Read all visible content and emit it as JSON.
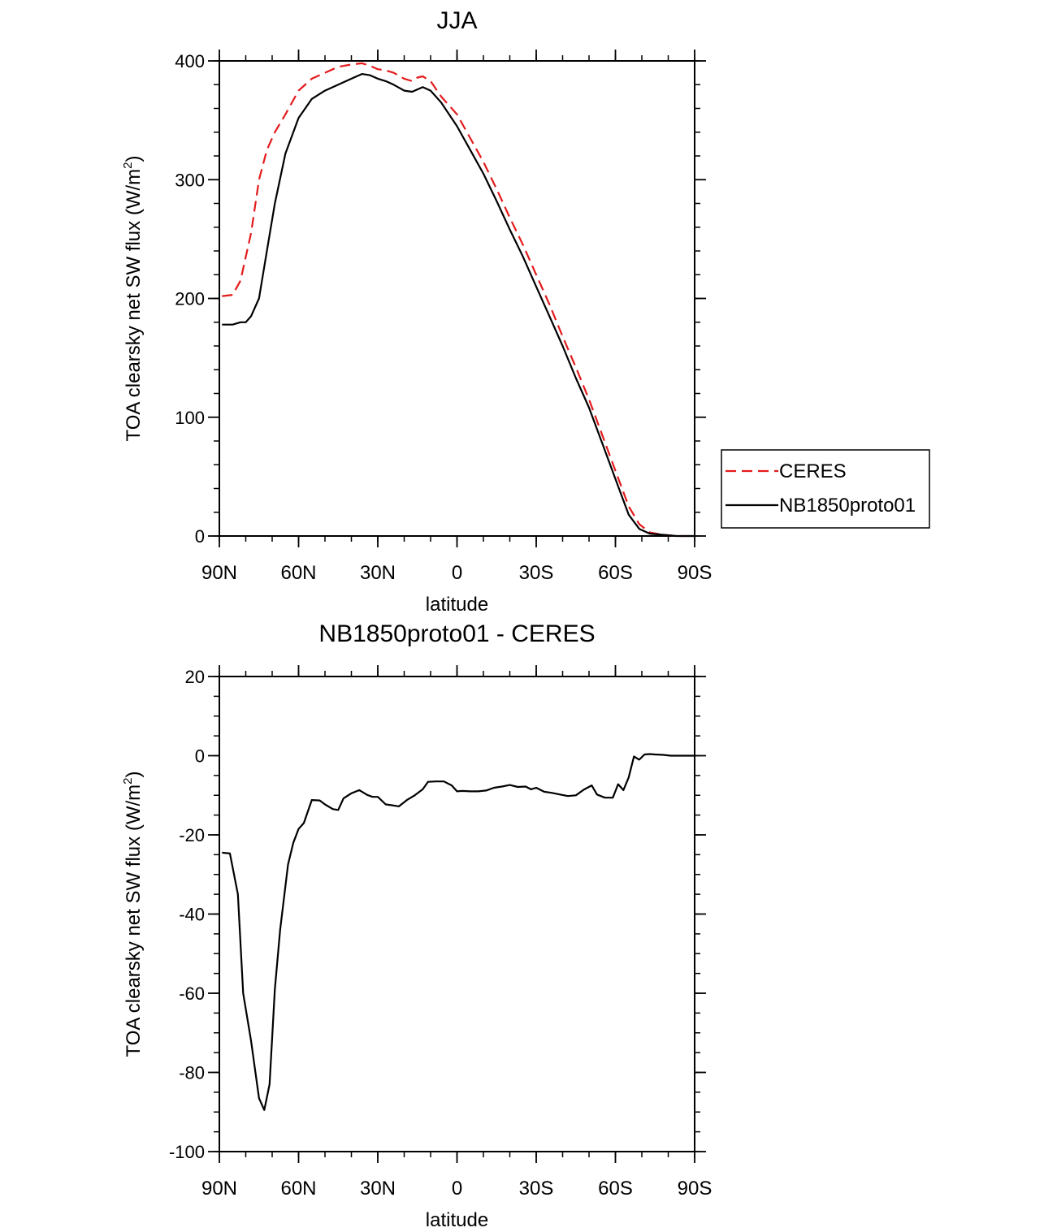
{
  "chart_data": [
    {
      "type": "line",
      "title": "JJA",
      "xlabel": "latitude",
      "ylabel": "TOA clearsky net SW flux (W/m",
      "ylabel_sup": "2",
      "ylabel_close": ")",
      "xlim": [
        90,
        -90
      ],
      "ylim": [
        0,
        400
      ],
      "x_ticks": [
        {
          "value": 90,
          "label": "90N"
        },
        {
          "value": 60,
          "label": "60N"
        },
        {
          "value": 30,
          "label": "30N"
        },
        {
          "value": 0,
          "label": "0"
        },
        {
          "value": -30,
          "label": "30S"
        },
        {
          "value": -60,
          "label": "60S"
        },
        {
          "value": -90,
          "label": "90S"
        }
      ],
      "y_ticks": [
        {
          "value": 0,
          "label": "0"
        },
        {
          "value": 100,
          "label": "100"
        },
        {
          "value": 200,
          "label": "200"
        },
        {
          "value": 300,
          "label": "300"
        },
        {
          "value": 400,
          "label": "400"
        }
      ],
      "legend": {
        "position": "right",
        "entries": [
          "CERES",
          "NB1850proto01"
        ]
      },
      "series": [
        {
          "name": "CERES",
          "color": "#e41a1c",
          "dash": true,
          "x": [
            89,
            85,
            82,
            80,
            78,
            75,
            72,
            69,
            65,
            60,
            55,
            50,
            45,
            40,
            36,
            33,
            30,
            27,
            24,
            20,
            17,
            15,
            13,
            10,
            6,
            0,
            -5,
            -10,
            -15,
            -20,
            -25,
            -30,
            -35,
            -40,
            -45,
            -50,
            -55,
            -60,
            -65,
            -69,
            -73,
            -78,
            -83,
            -90
          ],
          "values": [
            202,
            203,
            215,
            235,
            255,
            300,
            325,
            340,
            355,
            375,
            385,
            390,
            395,
            397,
            398,
            396,
            393,
            392,
            390,
            385,
            383,
            386,
            387,
            383,
            370,
            355,
            335,
            315,
            292,
            268,
            245,
            220,
            195,
            168,
            142,
            115,
            85,
            55,
            25,
            10,
            3,
            1,
            0,
            0
          ]
        },
        {
          "name": "NB1850proto01",
          "color": "#000000",
          "dash": false,
          "x": [
            89,
            85,
            82,
            80,
            78,
            75,
            72,
            69,
            65,
            60,
            55,
            50,
            45,
            40,
            36,
            33,
            30,
            27,
            24,
            20,
            17,
            15,
            13,
            10,
            6,
            0,
            -5,
            -10,
            -15,
            -20,
            -25,
            -30,
            -35,
            -40,
            -45,
            -50,
            -55,
            -60,
            -65,
            -69,
            -73,
            -78,
            -83,
            -90
          ],
          "values": [
            178,
            178,
            180,
            180,
            185,
            200,
            240,
            280,
            322,
            352,
            368,
            375,
            380,
            385,
            389,
            388,
            385,
            383,
            380,
            375,
            374,
            376,
            378,
            375,
            365,
            345,
            325,
            305,
            282,
            258,
            235,
            210,
            185,
            160,
            133,
            108,
            78,
            48,
            18,
            6,
            2,
            1,
            0,
            0
          ]
        }
      ]
    },
    {
      "type": "line",
      "title": "NB1850proto01 - CERES",
      "xlabel": "latitude",
      "ylabel": "TOA clearsky net SW flux (W/m",
      "ylabel_sup": "2",
      "ylabel_close": ")",
      "xlim": [
        90,
        -90
      ],
      "ylim": [
        -100,
        20
      ],
      "x_ticks": [
        {
          "value": 90,
          "label": "90N"
        },
        {
          "value": 60,
          "label": "60N"
        },
        {
          "value": 30,
          "label": "30N"
        },
        {
          "value": 0,
          "label": "0"
        },
        {
          "value": -30,
          "label": "30S"
        },
        {
          "value": -60,
          "label": "60S"
        },
        {
          "value": -90,
          "label": "90S"
        }
      ],
      "y_ticks": [
        {
          "value": -100,
          "label": "-100"
        },
        {
          "value": -80,
          "label": "-80"
        },
        {
          "value": -60,
          "label": "-60"
        },
        {
          "value": -40,
          "label": "-40"
        },
        {
          "value": -20,
          "label": "-20"
        },
        {
          "value": 0,
          "label": "0"
        },
        {
          "value": 20,
          "label": "20"
        }
      ],
      "series": [
        {
          "name": "NB1850proto01 - CERES",
          "color": "#000000",
          "dash": false,
          "x": [
            89,
            86,
            83,
            81,
            78,
            75,
            73,
            71,
            69,
            67,
            64,
            62,
            60,
            58,
            55,
            52,
            50,
            47,
            45,
            43,
            40,
            37,
            34,
            32,
            30,
            27,
            25,
            22,
            19,
            16,
            13,
            11,
            8,
            5,
            2,
            0,
            -2,
            -5,
            -8,
            -11,
            -14,
            -17,
            -20,
            -23,
            -26,
            -28,
            -30,
            -33,
            -36,
            -39,
            -42,
            -45,
            -48,
            -51,
            -53,
            -56,
            -59,
            -61,
            -63,
            -65,
            -67,
            -69,
            -71,
            -73,
            -75,
            -78,
            -81,
            -84,
            -87,
            -90
          ],
          "values": [
            -24.5,
            -24.7,
            -35,
            -60,
            -72,
            -86.5,
            -89.5,
            -83,
            -59,
            -44,
            -27.5,
            -22,
            -18.5,
            -17,
            -11.2,
            -11.3,
            -12.3,
            -13.5,
            -13.7,
            -10.8,
            -9.5,
            -8.7,
            -9.9,
            -10.4,
            -10.4,
            -12.3,
            -12.5,
            -12.8,
            -11.2,
            -10,
            -8.5,
            -6.6,
            -6.5,
            -6.5,
            -7.5,
            -9,
            -8.9,
            -9,
            -9,
            -8.8,
            -8.1,
            -7.8,
            -7.4,
            -7.9,
            -7.8,
            -8.5,
            -8.1,
            -9.1,
            -9.4,
            -9.8,
            -10.2,
            -10,
            -8.6,
            -7.5,
            -9.8,
            -10.6,
            -10.6,
            -7.2,
            -8.7,
            -5.5,
            -0.2,
            -1,
            0.3,
            0.4,
            0.3,
            0.2,
            0,
            0,
            0,
            0
          ]
        }
      ]
    }
  ]
}
